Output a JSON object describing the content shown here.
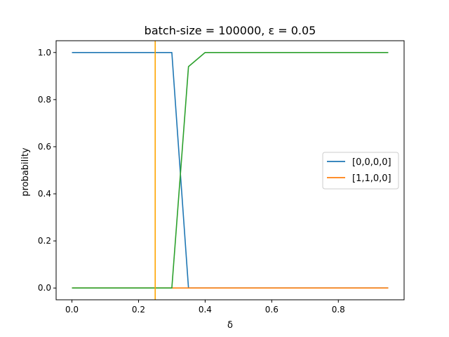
{
  "chart_data": {
    "type": "line",
    "title": "batch-size = 100000, ε = 0.05",
    "xlabel": "δ",
    "ylabel": "probability",
    "xlim": [
      -0.0475,
      0.9975
    ],
    "ylim": [
      -0.05,
      1.05
    ],
    "xticks": [
      0.0,
      0.2,
      0.4,
      0.6,
      0.8
    ],
    "xtick_labels": [
      "0.0",
      "0.2",
      "0.4",
      "0.6",
      "0.8"
    ],
    "yticks": [
      0.0,
      0.2,
      0.4,
      0.6,
      0.8,
      1.0
    ],
    "ytick_labels": [
      "0.0",
      "0.2",
      "0.4",
      "0.6",
      "0.8",
      "1.0"
    ],
    "grid": false,
    "legend_position": "center-right",
    "series": [
      {
        "name": "[0,0,0,0]",
        "color": "#1f77b4",
        "x": [
          0.0,
          0.05,
          0.1,
          0.15,
          0.2,
          0.25,
          0.3,
          0.35,
          0.4,
          0.45,
          0.5,
          0.55,
          0.6,
          0.65,
          0.7,
          0.75,
          0.8,
          0.85,
          0.9,
          0.95
        ],
        "y": [
          1.0,
          1.0,
          1.0,
          1.0,
          1.0,
          1.0,
          1.0,
          0.0,
          0.0,
          0.0,
          0.0,
          0.0,
          0.0,
          0.0,
          0.0,
          0.0,
          0.0,
          0.0,
          0.0,
          0.0
        ]
      },
      {
        "name": "[1,1,0,0]",
        "color": "#ff7f0e",
        "x": [
          0.0,
          0.05,
          0.1,
          0.15,
          0.2,
          0.25,
          0.3,
          0.35,
          0.4,
          0.45,
          0.5,
          0.55,
          0.6,
          0.65,
          0.7,
          0.75,
          0.8,
          0.85,
          0.9,
          0.95
        ],
        "y": [
          0.0,
          0.0,
          0.0,
          0.0,
          0.0,
          0.0,
          0.0,
          0.0,
          0.0,
          0.0,
          0.0,
          0.0,
          0.0,
          0.0,
          0.0,
          0.0,
          0.0,
          0.0,
          0.0,
          0.0
        ]
      },
      {
        "name": "",
        "color": "#2ca02c",
        "x": [
          0.0,
          0.05,
          0.1,
          0.15,
          0.2,
          0.25,
          0.3,
          0.35,
          0.4,
          0.45,
          0.5,
          0.55,
          0.6,
          0.65,
          0.7,
          0.75,
          0.8,
          0.85,
          0.9,
          0.95
        ],
        "y": [
          0.0,
          0.0,
          0.0,
          0.0,
          0.0,
          0.0,
          0.0,
          0.94,
          1.0,
          1.0,
          1.0,
          1.0,
          1.0,
          1.0,
          1.0,
          1.0,
          1.0,
          1.0,
          1.0,
          1.0
        ]
      }
    ],
    "vlines": [
      {
        "x": 0.25,
        "color": "#ffa500"
      }
    ]
  }
}
